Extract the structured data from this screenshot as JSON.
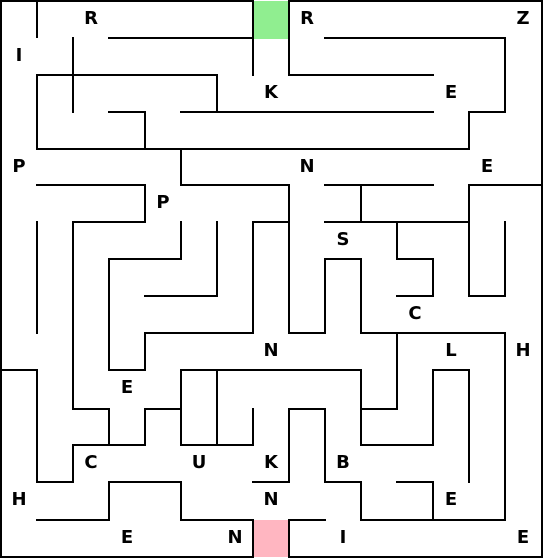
{
  "maze": {
    "rows": 15,
    "cols": 15,
    "start": {
      "row": 0,
      "col": 7
    },
    "end": {
      "row": 14,
      "col": 7
    },
    "colors": {
      "wall": "#000000",
      "background": "#ffffff",
      "start": "#90ee90",
      "end": "#ffb6c1"
    },
    "letters": [
      {
        "row": 0,
        "col": 2,
        "text": "R"
      },
      {
        "row": 0,
        "col": 8,
        "text": "R"
      },
      {
        "row": 0,
        "col": 14,
        "text": "Z"
      },
      {
        "row": 1,
        "col": 0,
        "text": "I"
      },
      {
        "row": 2,
        "col": 7,
        "text": "K"
      },
      {
        "row": 2,
        "col": 12,
        "text": "E"
      },
      {
        "row": 4,
        "col": 0,
        "text": "P"
      },
      {
        "row": 4,
        "col": 8,
        "text": "N"
      },
      {
        "row": 4,
        "col": 13,
        "text": "E"
      },
      {
        "row": 5,
        "col": 4,
        "text": "P"
      },
      {
        "row": 6,
        "col": 9,
        "text": "S"
      },
      {
        "row": 8,
        "col": 11,
        "text": "C"
      },
      {
        "row": 9,
        "col": 7,
        "text": "N"
      },
      {
        "row": 9,
        "col": 12,
        "text": "L"
      },
      {
        "row": 9,
        "col": 14,
        "text": "H"
      },
      {
        "row": 10,
        "col": 3,
        "text": "E"
      },
      {
        "row": 12,
        "col": 2,
        "text": "C"
      },
      {
        "row": 12,
        "col": 5,
        "text": "U"
      },
      {
        "row": 12,
        "col": 7,
        "text": "K"
      },
      {
        "row": 12,
        "col": 9,
        "text": "B"
      },
      {
        "row": 13,
        "col": 0,
        "text": "H"
      },
      {
        "row": 13,
        "col": 7,
        "text": "N"
      },
      {
        "row": 13,
        "col": 12,
        "text": "E"
      },
      {
        "row": 14,
        "col": 3,
        "text": "E"
      },
      {
        "row": 14,
        "col": 6,
        "text": "N"
      },
      {
        "row": 14,
        "col": 9,
        "text": "I"
      },
      {
        "row": 14,
        "col": 14,
        "text": "E"
      }
    ]
  }
}
